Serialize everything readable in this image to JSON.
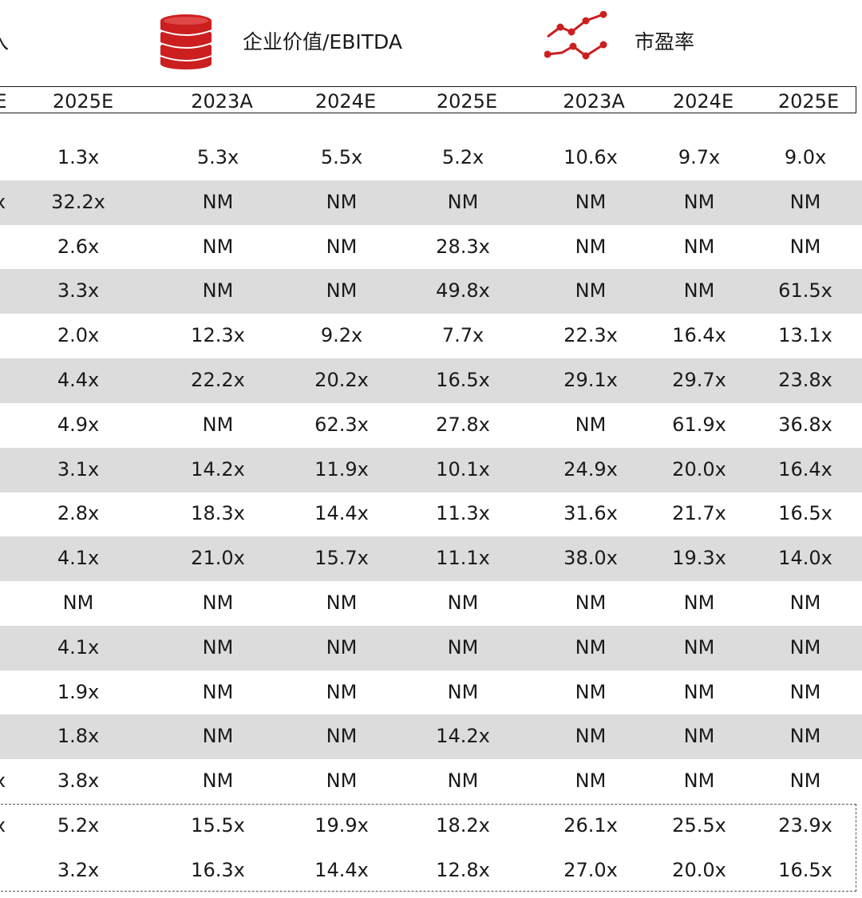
{
  "headers": {
    "left_fragment": "入",
    "ev_ebitda": "企业价值/EBITDA",
    "pe": "市盈率",
    "left_year_fragment": "E",
    "years": [
      "2025E",
      "2023A",
      "2024E",
      "2025E",
      "2023A",
      "2024E",
      "2025E"
    ]
  },
  "icons": {
    "coin": "coin-stack-icon",
    "line": "line-chart-icon",
    "accent": "#cc1f1f"
  },
  "rows": [
    {
      "cut": "",
      "cells": [
        "1.3x",
        "5.3x",
        "5.5x",
        "5.2x",
        "10.6x",
        "9.7x",
        "9.0x"
      ]
    },
    {
      "cut": "x",
      "cells": [
        "32.2x",
        "NM",
        "NM",
        "NM",
        "NM",
        "NM",
        "NM"
      ]
    },
    {
      "cut": "",
      "cells": [
        "2.6x",
        "NM",
        "NM",
        "28.3x",
        "NM",
        "NM",
        "NM"
      ]
    },
    {
      "cut": "",
      "cells": [
        "3.3x",
        "NM",
        "NM",
        "49.8x",
        "NM",
        "NM",
        "61.5x"
      ]
    },
    {
      "cut": "",
      "cells": [
        "2.0x",
        "12.3x",
        "9.2x",
        "7.7x",
        "22.3x",
        "16.4x",
        "13.1x"
      ]
    },
    {
      "cut": "",
      "cells": [
        "4.4x",
        "22.2x",
        "20.2x",
        "16.5x",
        "29.1x",
        "29.7x",
        "23.8x"
      ]
    },
    {
      "cut": "",
      "cells": [
        "4.9x",
        "NM",
        "62.3x",
        "27.8x",
        "NM",
        "61.9x",
        "36.8x"
      ]
    },
    {
      "cut": "",
      "cells": [
        "3.1x",
        "14.2x",
        "11.9x",
        "10.1x",
        "24.9x",
        "20.0x",
        "16.4x"
      ]
    },
    {
      "cut": "",
      "cells": [
        "2.8x",
        "18.3x",
        "14.4x",
        "11.3x",
        "31.6x",
        "21.7x",
        "16.5x"
      ]
    },
    {
      "cut": "",
      "cells": [
        "4.1x",
        "21.0x",
        "15.7x",
        "11.1x",
        "38.0x",
        "19.3x",
        "14.0x"
      ]
    },
    {
      "cut": "",
      "cells": [
        "NM",
        "NM",
        "NM",
        "NM",
        "NM",
        "NM",
        "NM"
      ]
    },
    {
      "cut": "",
      "cells": [
        "4.1x",
        "NM",
        "NM",
        "NM",
        "NM",
        "NM",
        "NM"
      ]
    },
    {
      "cut": "",
      "cells": [
        "1.9x",
        "NM",
        "NM",
        "NM",
        "NM",
        "NM",
        "NM"
      ]
    },
    {
      "cut": "",
      "cells": [
        "1.8x",
        "NM",
        "NM",
        "14.2x",
        "NM",
        "NM",
        "NM"
      ]
    },
    {
      "cut": "x",
      "cells": [
        "3.8x",
        "NM",
        "NM",
        "NM",
        "NM",
        "NM",
        "NM"
      ]
    },
    {
      "cut": "x",
      "cells": [
        "5.2x",
        "15.5x",
        "19.9x",
        "18.2x",
        "26.1x",
        "25.5x",
        "23.9x"
      ]
    },
    {
      "cut": "",
      "cells": [
        "3.2x",
        "16.3x",
        "14.4x",
        "12.8x",
        "27.0x",
        "20.0x",
        "16.5x"
      ]
    }
  ]
}
